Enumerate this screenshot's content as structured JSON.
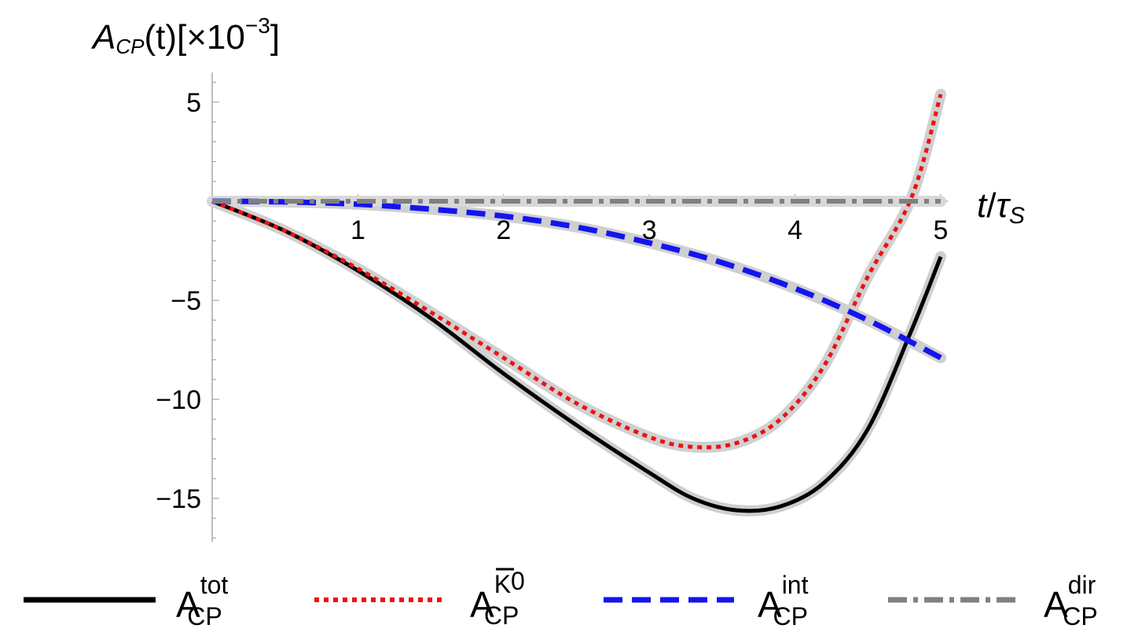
{
  "chart_data": {
    "type": "line",
    "ylabel": {
      "main": "A",
      "sub": "CP",
      "arg": "(t)",
      "scale_prefix": "[×10",
      "scale_exp": "−3",
      "scale_suffix": "]"
    },
    "xlabel": {
      "num": "t",
      "slash": "/",
      "den": "τ",
      "den_sub": "S"
    },
    "xlim": [
      0,
      5.05
    ],
    "ylim": [
      -17.2,
      6.5
    ],
    "x_ticks": [
      {
        "value": 1,
        "label": "1"
      },
      {
        "value": 2,
        "label": "2"
      },
      {
        "value": 3,
        "label": "3"
      },
      {
        "value": 4,
        "label": "4"
      },
      {
        "value": 5,
        "label": "5"
      }
    ],
    "y_ticks": [
      {
        "value": 5,
        "label": "5"
      },
      {
        "value": -5,
        "label": "−5"
      },
      {
        "value": -10,
        "label": "−10"
      },
      {
        "value": -15,
        "label": "−15"
      }
    ],
    "legend_position": "bottom",
    "series": [
      {
        "key": "tot",
        "legend": {
          "main": "A",
          "sup": "tot",
          "sub": "CP"
        },
        "color": "#000000",
        "dash": "solid",
        "band_color": "#cfcfcf",
        "x": [
          0,
          0.5,
          1,
          1.5,
          2,
          2.5,
          3,
          3.3,
          3.6,
          3.9,
          4.2,
          4.5,
          4.8,
          5.0
        ],
        "y": [
          0,
          -1.5,
          -3.5,
          -5.9,
          -8.7,
          -11.3,
          -13.7,
          -15.0,
          -15.6,
          -15.4,
          -14.2,
          -11.5,
          -6.5,
          -2.8
        ]
      },
      {
        "key": "kbar",
        "legend": {
          "main": "A",
          "sup": "K0bar",
          "sub": "CP"
        },
        "color": "#ee1111",
        "dash": "dotted",
        "band_color": "#d0d0d0",
        "x": [
          0,
          0.5,
          1,
          1.5,
          2,
          2.5,
          3,
          3.3,
          3.6,
          3.9,
          4.2,
          4.5,
          4.8,
          5.0
        ],
        "y": [
          0,
          -1.5,
          -3.4,
          -5.6,
          -7.9,
          -10.2,
          -11.9,
          -12.4,
          -12.2,
          -11.0,
          -8.3,
          -3.8,
          0.2,
          5.4
        ]
      },
      {
        "key": "int",
        "legend": {
          "main": "A",
          "sup": "int",
          "sub": "CP"
        },
        "color": "#1414f0",
        "dash": "dashed",
        "band_color": "#cfcfcf",
        "x": [
          0,
          0.5,
          1,
          1.5,
          2,
          2.5,
          3,
          3.5,
          4,
          4.5,
          5.0
        ],
        "y": [
          0,
          -0.03,
          -0.15,
          -0.4,
          -0.75,
          -1.3,
          -2.1,
          -3.1,
          -4.4,
          -6.0,
          -7.9
        ]
      },
      {
        "key": "dir",
        "legend": {
          "main": "A",
          "sup": "dir",
          "sub": "CP"
        },
        "color": "#808080",
        "dash": "dashdot",
        "band_color": "#d8d8d8",
        "x": [
          0,
          5.0
        ],
        "y": [
          0,
          0
        ]
      }
    ]
  }
}
